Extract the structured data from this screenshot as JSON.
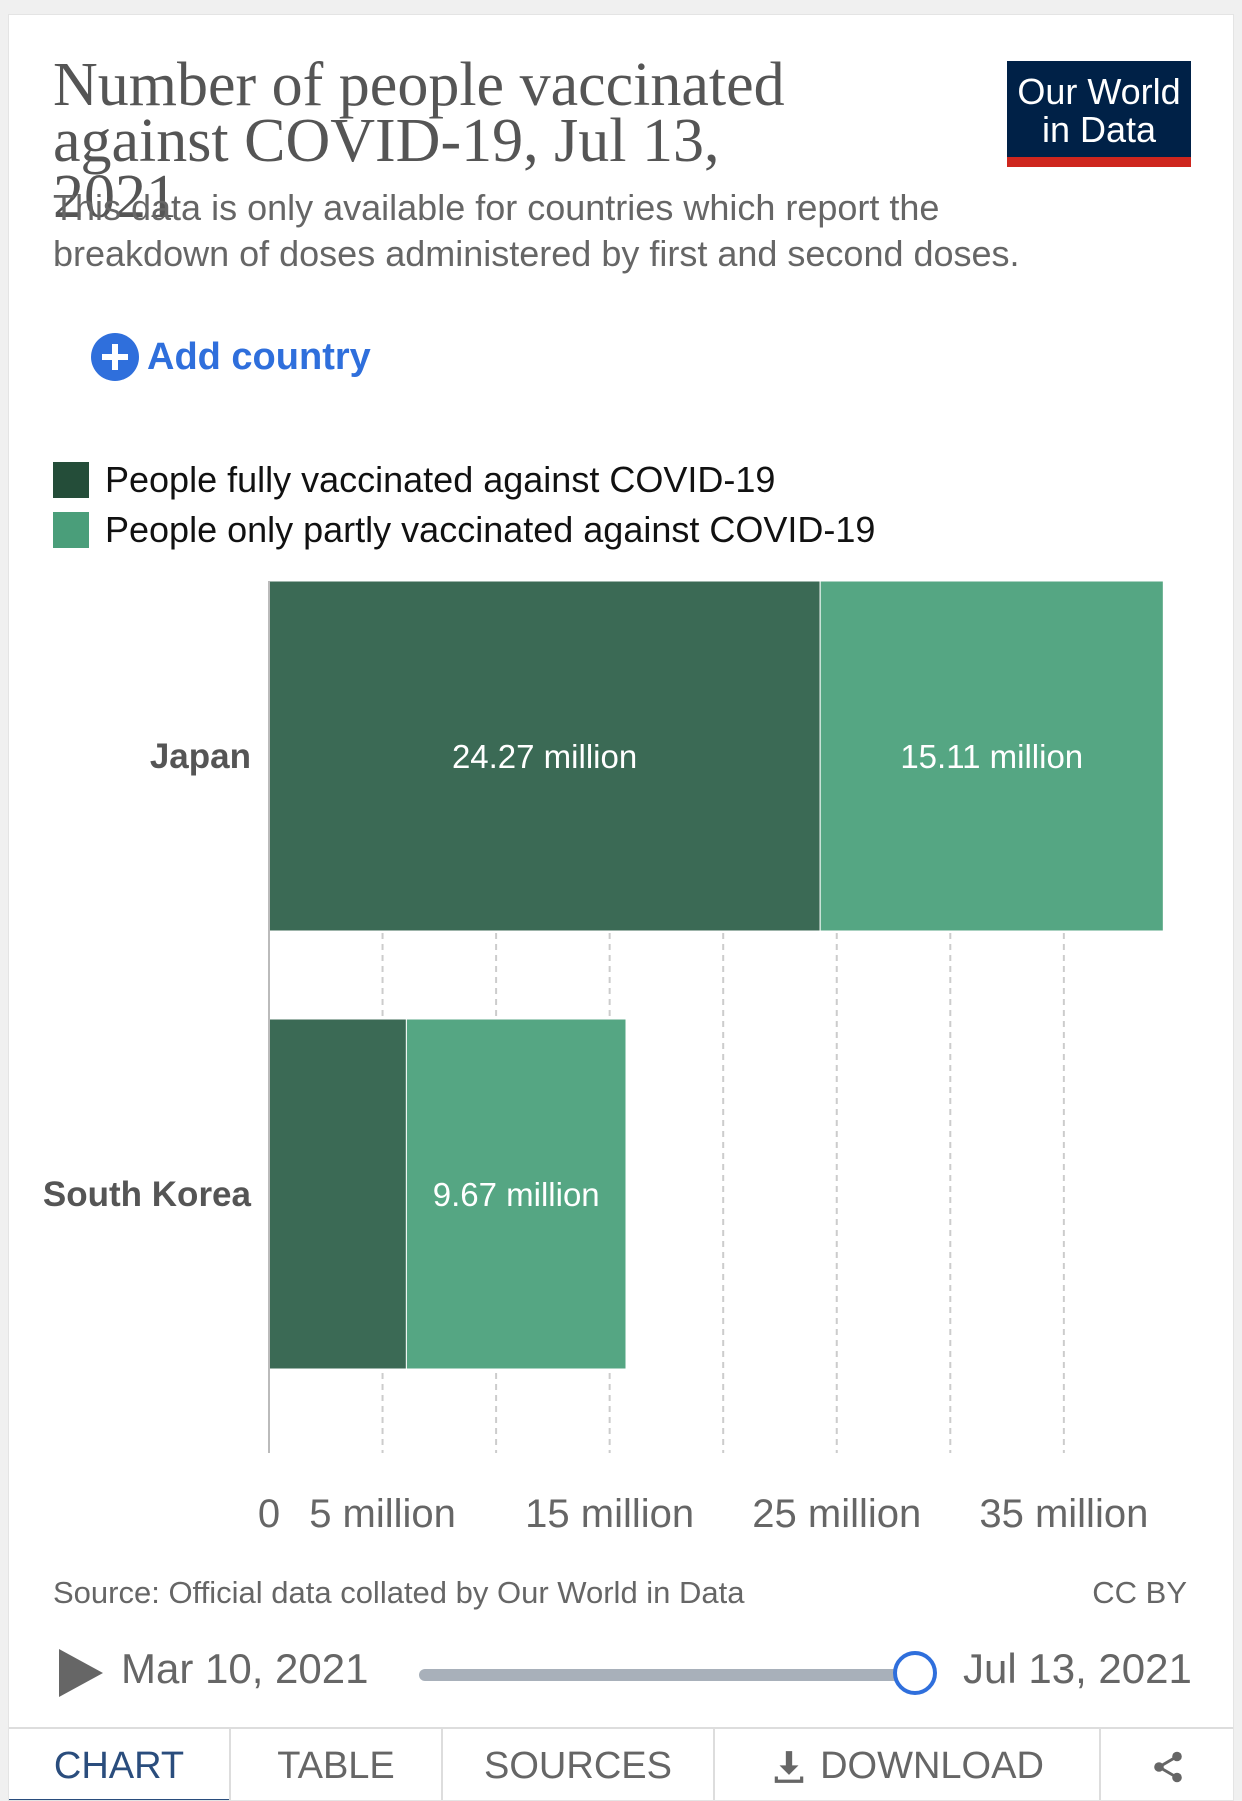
{
  "header": {
    "title": "Number of people vaccinated against COVID-19, Jul 13, 2021",
    "subtitle": "This data is only available for countries which report the breakdown of doses administered by first and second doses.",
    "logo_line1": "Our World",
    "logo_line2": "in Data"
  },
  "controls": {
    "add_country": "Add country"
  },
  "colors": {
    "fully": "#2e5e45",
    "partly": "#4a9e7a",
    "logo_bg": "#002147",
    "logo_bar": "#ce261e",
    "accent": "#2f6fdc"
  },
  "chart_data": {
    "type": "bar",
    "orientation": "horizontal",
    "stacked": true,
    "title": "Number of people vaccinated against COVID-19, Jul 13, 2021",
    "categories": [
      "Japan",
      "South Korea"
    ],
    "series": [
      {
        "name": "People fully vaccinated against COVID-19",
        "values": [
          24.27,
          6.05
        ],
        "labels": [
          "24.27 million",
          ""
        ]
      },
      {
        "name": "People only partly vaccinated against COVID-19",
        "values": [
          15.11,
          9.67
        ],
        "labels": [
          "15.11 million",
          "9.67 million"
        ]
      }
    ],
    "x_ticks": [
      {
        "value": 0,
        "label": "0"
      },
      {
        "value": 5,
        "label": "5 million"
      },
      {
        "value": 10,
        "label": ""
      },
      {
        "value": 15,
        "label": "15 million"
      },
      {
        "value": 20,
        "label": ""
      },
      {
        "value": 25,
        "label": "25 million"
      },
      {
        "value": 30,
        "label": ""
      },
      {
        "value": 35,
        "label": "35 million"
      }
    ],
    "xlim": [
      0,
      39.38
    ],
    "unit": "million",
    "legend_position": "top-left",
    "grid": "vertical dashed"
  },
  "footer": {
    "source": "Source: Official data collated by Our World in Data",
    "license": "CC BY"
  },
  "timeline": {
    "start": "Mar 10, 2021",
    "end": "Jul 13, 2021",
    "position": 1.0
  },
  "tabs": [
    {
      "label": "CHART",
      "active": true
    },
    {
      "label": "TABLE",
      "active": false
    },
    {
      "label": "SOURCES",
      "active": false
    },
    {
      "label": "DOWNLOAD",
      "active": false
    }
  ]
}
